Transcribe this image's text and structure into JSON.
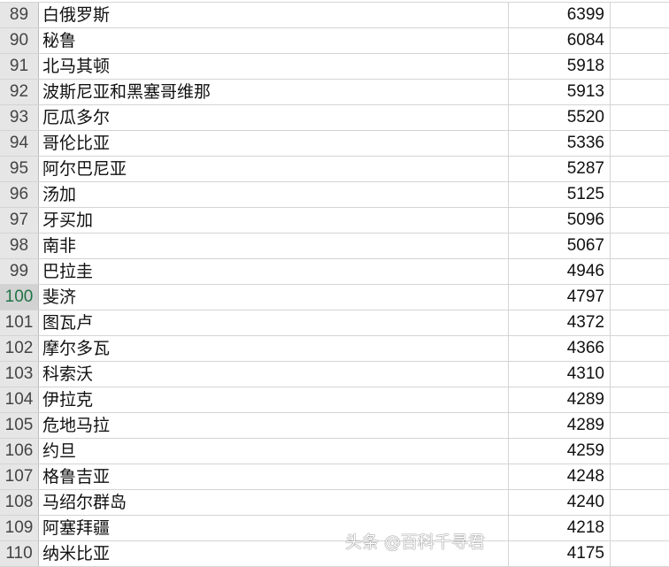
{
  "rows": [
    {
      "n": "89",
      "name": "白俄罗斯",
      "value": "6399"
    },
    {
      "n": "90",
      "name": "秘鲁",
      "value": "6084"
    },
    {
      "n": "91",
      "name": "北马其顿",
      "value": "5918"
    },
    {
      "n": "92",
      "name": "波斯尼亚和黑塞哥维那",
      "value": "5913"
    },
    {
      "n": "93",
      "name": "厄瓜多尔",
      "value": "5520"
    },
    {
      "n": "94",
      "name": "哥伦比亚",
      "value": "5336"
    },
    {
      "n": "95",
      "name": "阿尔巴尼亚",
      "value": "5287"
    },
    {
      "n": "96",
      "name": "汤加",
      "value": "5125"
    },
    {
      "n": "97",
      "name": "牙买加",
      "value": "5096"
    },
    {
      "n": "98",
      "name": "南非",
      "value": "5067"
    },
    {
      "n": "99",
      "name": "巴拉圭",
      "value": "4946"
    },
    {
      "n": "100",
      "name": "斐济",
      "value": "4797",
      "selected": true
    },
    {
      "n": "101",
      "name": "图瓦卢",
      "value": "4372"
    },
    {
      "n": "102",
      "name": "摩尔多瓦",
      "value": "4366"
    },
    {
      "n": "103",
      "name": "科索沃",
      "value": "4310"
    },
    {
      "n": "104",
      "name": "伊拉克",
      "value": "4289"
    },
    {
      "n": "105",
      "name": "危地马拉",
      "value": "4289"
    },
    {
      "n": "106",
      "name": "约旦",
      "value": "4259"
    },
    {
      "n": "107",
      "name": "格鲁吉亚",
      "value": "4248"
    },
    {
      "n": "108",
      "name": "马绍尔群岛",
      "value": "4240"
    },
    {
      "n": "109",
      "name": "阿塞拜疆",
      "value": "4218"
    },
    {
      "n": "110",
      "name": "纳米比亚",
      "value": "4175"
    }
  ],
  "watermark": "头条 @百科千寻君",
  "colors": {
    "selected_row_header": "#217346",
    "header_bg": "#e6e6e6",
    "gridline": "#d4d4d4"
  }
}
